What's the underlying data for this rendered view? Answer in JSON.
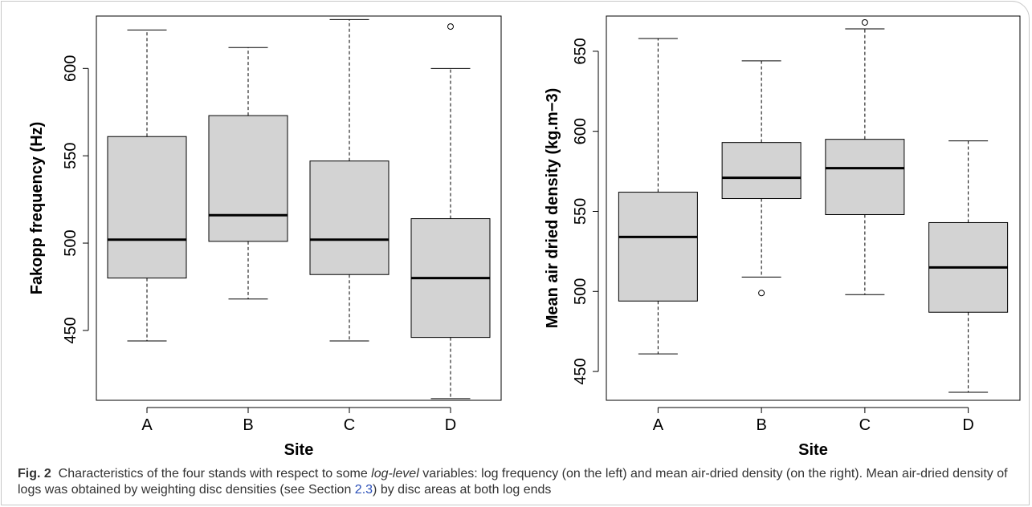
{
  "colors": {
    "box_fill": "#d3d3d3",
    "line": "#000000",
    "caption_link": "#2a4fb8",
    "caption_text": "#333333"
  },
  "caption": {
    "label": "Fig. 2",
    "part1": "Characteristics of the four stands with respect to some ",
    "italic": "log-level",
    "part2": " variables: log frequency (on the left) and mean air-dried density (on the right). Mean air-dried density of logs was obtained by weighting disc densities (see Section ",
    "link": "2.3",
    "part3": ") by disc areas at both log ends"
  },
  "chart_data": [
    {
      "type": "boxplot",
      "xlabel": "Site",
      "ylabel": "Fakopp frequency (Hz)",
      "categories": [
        "A",
        "B",
        "C",
        "D"
      ],
      "ylim": [
        410,
        630
      ],
      "yticks": [
        450,
        500,
        550,
        600
      ],
      "boxes": [
        {
          "site": "A",
          "whisker_low": 444,
          "q1": 480,
          "median": 502,
          "q3": 561,
          "whisker_high": 622,
          "outliers": []
        },
        {
          "site": "B",
          "whisker_low": 468,
          "q1": 501,
          "median": 516,
          "q3": 573,
          "whisker_high": 612,
          "outliers": []
        },
        {
          "site": "C",
          "whisker_low": 444,
          "q1": 482,
          "median": 502,
          "q3": 547,
          "whisker_high": 628,
          "outliers": []
        },
        {
          "site": "D",
          "whisker_low": 411,
          "q1": 446,
          "median": 480,
          "q3": 514,
          "whisker_high": 600,
          "outliers": [
            624
          ]
        }
      ]
    },
    {
      "type": "boxplot",
      "xlabel": "Site",
      "ylabel": "Mean air dried density (kg.m−3)",
      "categories": [
        "A",
        "B",
        "C",
        "D"
      ],
      "ylim": [
        432,
        672
      ],
      "yticks": [
        450,
        500,
        550,
        600,
        650
      ],
      "boxes": [
        {
          "site": "A",
          "whisker_low": 461,
          "q1": 494,
          "median": 534,
          "q3": 562,
          "whisker_high": 658,
          "outliers": []
        },
        {
          "site": "B",
          "whisker_low": 509,
          "q1": 558,
          "median": 571,
          "q3": 593,
          "whisker_high": 644,
          "outliers": [
            499
          ]
        },
        {
          "site": "C",
          "whisker_low": 498,
          "q1": 548,
          "median": 577,
          "q3": 595,
          "whisker_high": 664,
          "outliers": [
            668
          ]
        },
        {
          "site": "D",
          "whisker_low": 437,
          "q1": 487,
          "median": 515,
          "q3": 543,
          "whisker_high": 594,
          "outliers": []
        }
      ]
    }
  ]
}
